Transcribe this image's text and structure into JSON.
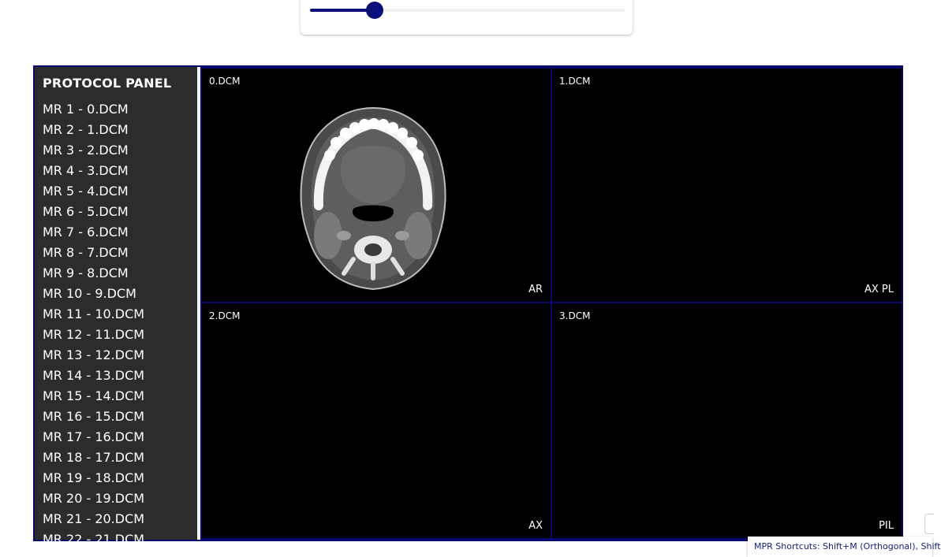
{
  "slider": {
    "value_fraction": 0.205
  },
  "protocol_panel": {
    "title": "PROTOCOL PANEL",
    "items": [
      "MR 1 - 0.DCM",
      "MR 2 - 1.DCM",
      "MR 3 - 2.DCM",
      "MR 4 - 3.DCM",
      "MR 5 - 4.DCM",
      "MR 6 - 5.DCM",
      "MR 7 - 6.DCM",
      "MR 8 - 7.DCM",
      "MR 9 - 8.DCM",
      "MR 10 - 9.DCM",
      "MR 11 - 10.DCM",
      "MR 12 - 11.DCM",
      "MR 13 - 12.DCM",
      "MR 14 - 13.DCM",
      "MR 15 - 14.DCM",
      "MR 16 - 15.DCM",
      "MR 17 - 16.DCM",
      "MR 18 - 17.DCM",
      "MR 19 - 18.DCM",
      "MR 20 - 19.DCM",
      "MR 21 - 20.DCM",
      "MR 22 - 21.DCM"
    ]
  },
  "viewports": [
    {
      "name": "0.DCM",
      "orientation": "AR"
    },
    {
      "name": "1.DCM",
      "orientation": "AX PL"
    },
    {
      "name": "2.DCM",
      "orientation": "AX"
    },
    {
      "name": "3.DCM",
      "orientation": "PIL"
    }
  ],
  "tooltip": {
    "text": "MPR Shortcuts: Shift+M (Orthogonal), Shift"
  },
  "colors": {
    "accent": "#0a0f7a",
    "viewport_border": "#08086e",
    "panel_bg": "#2c2c2c",
    "viewport_bg": "#000000",
    "tooltip_text": "#1a237e"
  }
}
